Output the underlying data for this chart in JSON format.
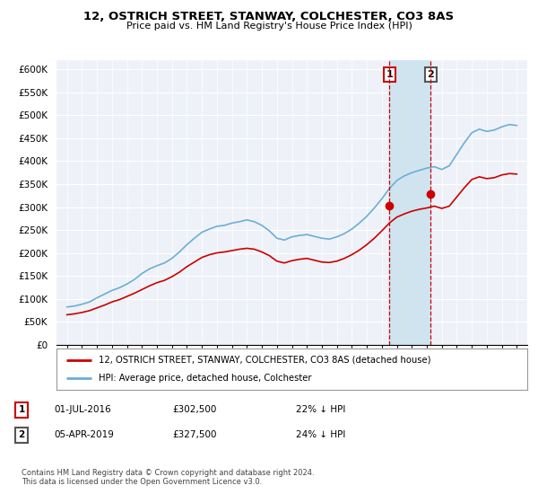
{
  "title": "12, OSTRICH STREET, STANWAY, COLCHESTER, CO3 8AS",
  "subtitle": "Price paid vs. HM Land Registry's House Price Index (HPI)",
  "hpi_color": "#6baed6",
  "price_color": "#cc0000",
  "purchase1_year": 2016.5,
  "purchase1_price": 302500,
  "purchase2_year": 2019.25,
  "purchase2_price": 327500,
  "legend_label_price": "12, OSTRICH STREET, STANWAY, COLCHESTER, CO3 8AS (detached house)",
  "legend_label_hpi": "HPI: Average price, detached house, Colchester",
  "footer": "Contains HM Land Registry data © Crown copyright and database right 2024.\nThis data is licensed under the Open Government Licence v3.0.",
  "table_rows": [
    [
      "1",
      "01-JUL-2016",
      "£302,500",
      "22% ↓ HPI"
    ],
    [
      "2",
      "05-APR-2019",
      "£327,500",
      "24% ↓ HPI"
    ]
  ],
  "background_color": "#ffffff",
  "plot_bg_color": "#eef2f8",
  "shade_color": "#d0e4f0",
  "yticks": [
    0,
    50000,
    100000,
    150000,
    200000,
    250000,
    300000,
    350000,
    400000,
    450000,
    500000,
    550000,
    600000
  ],
  "ytick_labels": [
    "£0",
    "£50K",
    "£100K",
    "£150K",
    "£200K",
    "£250K",
    "£300K",
    "£350K",
    "£400K",
    "£450K",
    "£500K",
    "£550K",
    "£600K"
  ],
  "years_hpi": [
    1995,
    1995.5,
    1996,
    1996.5,
    1997,
    1997.5,
    1998,
    1998.5,
    1999,
    1999.5,
    2000,
    2000.5,
    2001,
    2001.5,
    2002,
    2002.5,
    2003,
    2003.5,
    2004,
    2004.5,
    2005,
    2005.5,
    2006,
    2006.5,
    2007,
    2007.5,
    2008,
    2008.5,
    2009,
    2009.5,
    2010,
    2010.5,
    2011,
    2011.5,
    2012,
    2012.5,
    2013,
    2013.5,
    2014,
    2014.5,
    2015,
    2015.5,
    2016,
    2016.5,
    2017,
    2017.5,
    2018,
    2018.5,
    2019,
    2019.5,
    2020,
    2020.5,
    2021,
    2021.5,
    2022,
    2022.5,
    2023,
    2023.5,
    2024,
    2024.5,
    2025
  ],
  "values_hpi": [
    82000,
    84000,
    88000,
    93000,
    102000,
    110000,
    118000,
    124000,
    132000,
    142000,
    155000,
    165000,
    172000,
    178000,
    188000,
    202000,
    218000,
    232000,
    245000,
    252000,
    258000,
    260000,
    265000,
    268000,
    272000,
    268000,
    260000,
    248000,
    232000,
    228000,
    235000,
    238000,
    240000,
    236000,
    232000,
    230000,
    235000,
    242000,
    252000,
    265000,
    280000,
    298000,
    318000,
    340000,
    358000,
    368000,
    375000,
    380000,
    385000,
    388000,
    382000,
    390000,
    415000,
    440000,
    462000,
    470000,
    465000,
    468000,
    475000,
    480000,
    478000
  ],
  "values_price": [
    65000,
    67000,
    70000,
    74000,
    80000,
    86000,
    93000,
    98000,
    105000,
    112000,
    120000,
    128000,
    135000,
    140000,
    148000,
    158000,
    170000,
    180000,
    190000,
    196000,
    200000,
    202000,
    205000,
    208000,
    210000,
    208000,
    202000,
    194000,
    182000,
    178000,
    183000,
    186000,
    188000,
    184000,
    180000,
    179000,
    182000,
    188000,
    196000,
    206000,
    218000,
    232000,
    248000,
    265000,
    278000,
    285000,
    291000,
    295000,
    298000,
    302000,
    297000,
    302000,
    322000,
    342000,
    360000,
    366000,
    362000,
    364000,
    370000,
    373000,
    372000
  ]
}
